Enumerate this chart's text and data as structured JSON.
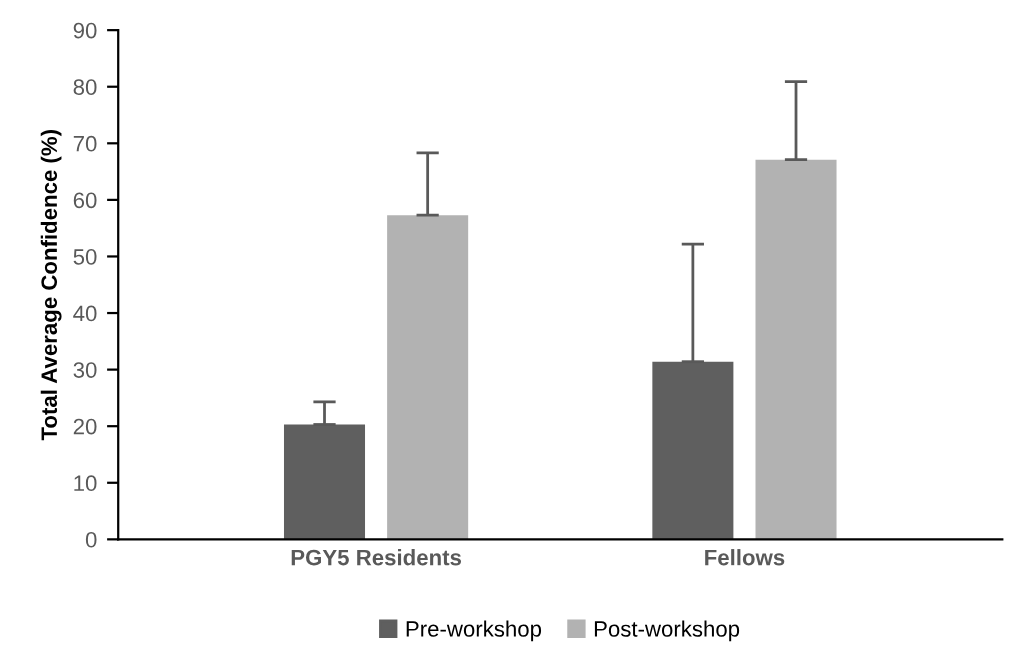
{
  "chart_data": {
    "type": "bar",
    "ylabel": "Total Average Confidence (%)",
    "categories": [
      "PGY5 Residents",
      "Fellows"
    ],
    "series": [
      {
        "name": "Pre-workshop",
        "color": "#5f5f5f",
        "values": [
          20.3,
          31.4
        ],
        "errors": [
          [
            20.3,
            24.3
          ],
          [
            31.4,
            52.2
          ]
        ]
      },
      {
        "name": "Post-workshop",
        "color": "#b2b2b2",
        "values": [
          57.3,
          67.1
        ],
        "errors": [
          [
            57.3,
            68.3
          ],
          [
            67.1,
            80.9
          ]
        ]
      }
    ],
    "ylim": [
      0,
      90
    ],
    "yticks": [
      0,
      10,
      20,
      30,
      40,
      50,
      60,
      70,
      80,
      90
    ],
    "grid": false,
    "legend": "bottom"
  }
}
